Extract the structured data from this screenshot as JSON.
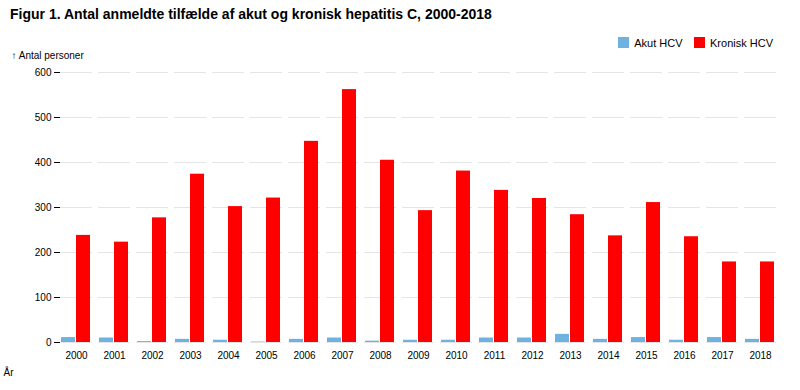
{
  "chart_data": {
    "type": "bar",
    "title": "Figur 1. Antal anmeldte tilfælde af akut og kronisk hepatitis C, 2000-2018",
    "xlabel": "År",
    "ylabel": "Antal personer",
    "categories": [
      "2000",
      "2001",
      "2002",
      "2003",
      "2004",
      "2005",
      "2006",
      "2007",
      "2008",
      "2009",
      "2010",
      "2011",
      "2012",
      "2013",
      "2014",
      "2015",
      "2016",
      "2017",
      "2018"
    ],
    "series": [
      {
        "name": "Akut HCV",
        "color": "#6EB3E0",
        "values": [
          11,
          10,
          2,
          7,
          5,
          1,
          7,
          10,
          3,
          5,
          5,
          10,
          10,
          18,
          7,
          11,
          5,
          11,
          7
        ]
      },
      {
        "name": "Kronisk HCV",
        "color": "#FF0000",
        "values": [
          238,
          223,
          277,
          374,
          302,
          321,
          447,
          562,
          405,
          293,
          381,
          338,
          320,
          284,
          237,
          311,
          235,
          179,
          179
        ]
      }
    ],
    "ylim": [
      0,
      600
    ],
    "yticks": [
      0,
      100,
      200,
      300,
      400,
      500,
      600
    ],
    "grid": true,
    "legend": "upper right"
  }
}
